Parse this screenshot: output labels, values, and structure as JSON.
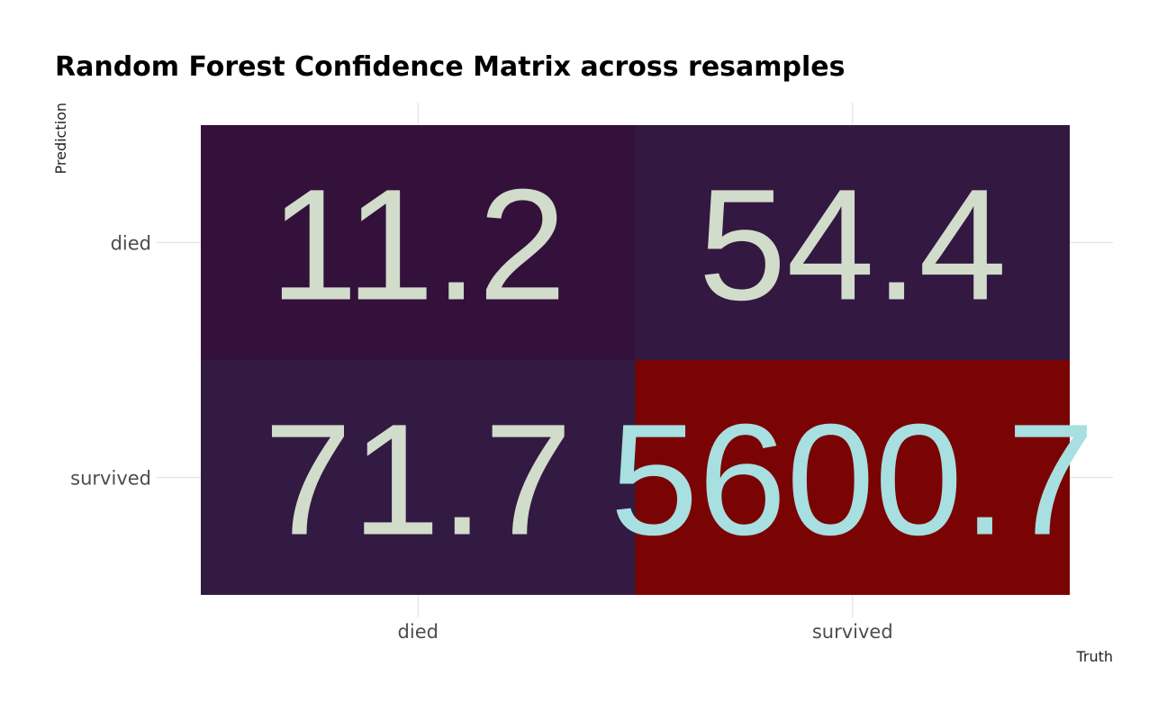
{
  "chart_data": {
    "type": "heatmap",
    "title": "Random Forest Confidence Matrix across resamples",
    "xlabel": "Truth",
    "ylabel": "Prediction",
    "x_categories": [
      "died",
      "survived"
    ],
    "y_categories": [
      "died",
      "survived"
    ],
    "cells": [
      {
        "truth": "died",
        "prediction": "died",
        "value": 11.2,
        "label": "11.2",
        "fill": "#33113b",
        "text_color": "#d1dccb"
      },
      {
        "truth": "survived",
        "prediction": "died",
        "value": 54.4,
        "label": "54.4",
        "fill": "#331841",
        "text_color": "#d1dccb"
      },
      {
        "truth": "died",
        "prediction": "survived",
        "value": 71.7,
        "label": "71.7",
        "fill": "#331a42",
        "text_color": "#d1dccb"
      },
      {
        "truth": "survived",
        "prediction": "survived",
        "value": 5600.7,
        "label": "5600.7",
        "fill": "#7a0404",
        "text_color": "#a8dfe0"
      }
    ],
    "grid": true,
    "legend": "none"
  }
}
